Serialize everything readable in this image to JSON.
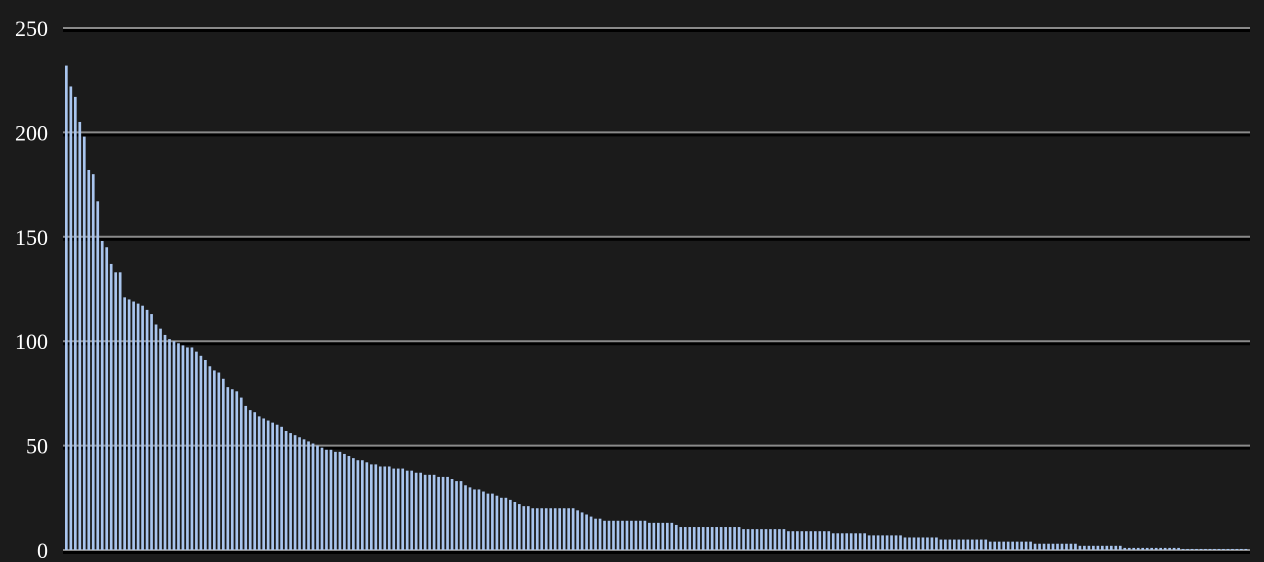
{
  "chart_data": {
    "type": "bar",
    "title": "",
    "xlabel": "",
    "ylabel": "",
    "ylim": [
      0,
      250
    ],
    "yticks": [
      "0",
      "50",
      "100",
      "150",
      "200",
      "250"
    ],
    "grid": true,
    "legend": "none",
    "colors": {
      "bar": "#a9c5ee",
      "background": "#1b1b1b",
      "grid": "#8a8a8a",
      "text": "#ffffff"
    },
    "values": [
      232,
      222,
      217,
      205,
      198,
      182,
      180,
      167,
      148,
      145,
      137,
      133,
      133,
      121,
      120,
      119,
      118,
      117,
      115,
      113,
      108,
      106,
      103,
      101,
      100,
      99,
      98,
      97,
      97,
      95,
      93,
      91,
      88,
      86,
      85,
      82,
      78,
      77,
      76,
      73,
      69,
      67,
      66,
      64,
      63,
      62,
      61,
      60,
      59,
      57,
      56,
      55,
      54,
      53,
      52,
      51,
      50,
      49,
      48,
      48,
      47,
      47,
      46,
      45,
      44,
      43,
      43,
      42,
      41,
      41,
      40,
      40,
      40,
      39,
      39,
      39,
      38,
      38,
      37,
      37,
      36,
      36,
      36,
      35,
      35,
      35,
      34,
      33,
      33,
      31,
      30,
      29,
      29,
      28,
      27,
      27,
      26,
      25,
      25,
      24,
      23,
      22,
      21,
      21,
      20,
      20,
      20,
      20,
      20,
      20,
      20,
      20,
      20,
      20,
      19,
      18,
      17,
      16,
      15,
      15,
      14,
      14,
      14,
      14,
      14,
      14,
      14,
      14,
      14,
      14,
      13,
      13,
      13,
      13,
      13,
      13,
      12,
      11,
      11,
      11,
      11,
      11,
      11,
      11,
      11,
      11,
      11,
      11,
      11,
      11,
      11,
      10,
      10,
      10,
      10,
      10,
      10,
      10,
      10,
      10,
      10,
      9,
      9,
      9,
      9,
      9,
      9,
      9,
      9,
      9,
      9,
      8,
      8,
      8,
      8,
      8,
      8,
      8,
      8,
      7,
      7,
      7,
      7,
      7,
      7,
      7,
      7,
      6,
      6,
      6,
      6,
      6,
      6,
      6,
      6,
      5,
      5,
      5,
      5,
      5,
      5,
      5,
      5,
      5,
      5,
      5,
      4,
      4,
      4,
      4,
      4,
      4,
      4,
      4,
      4,
      4,
      3,
      3,
      3,
      3,
      3,
      3,
      3,
      3,
      3,
      3,
      2,
      2,
      2,
      2,
      2,
      2,
      2,
      2,
      2,
      2,
      1,
      1,
      1,
      1,
      1,
      1,
      1,
      1,
      1,
      1,
      1,
      1,
      1,
      0.5,
      0.5,
      0.5,
      0.5,
      0.5,
      0.5,
      0.5,
      0.5,
      0.5,
      0.5,
      0.5,
      0.5,
      0.5,
      0.5,
      0.5
    ]
  }
}
